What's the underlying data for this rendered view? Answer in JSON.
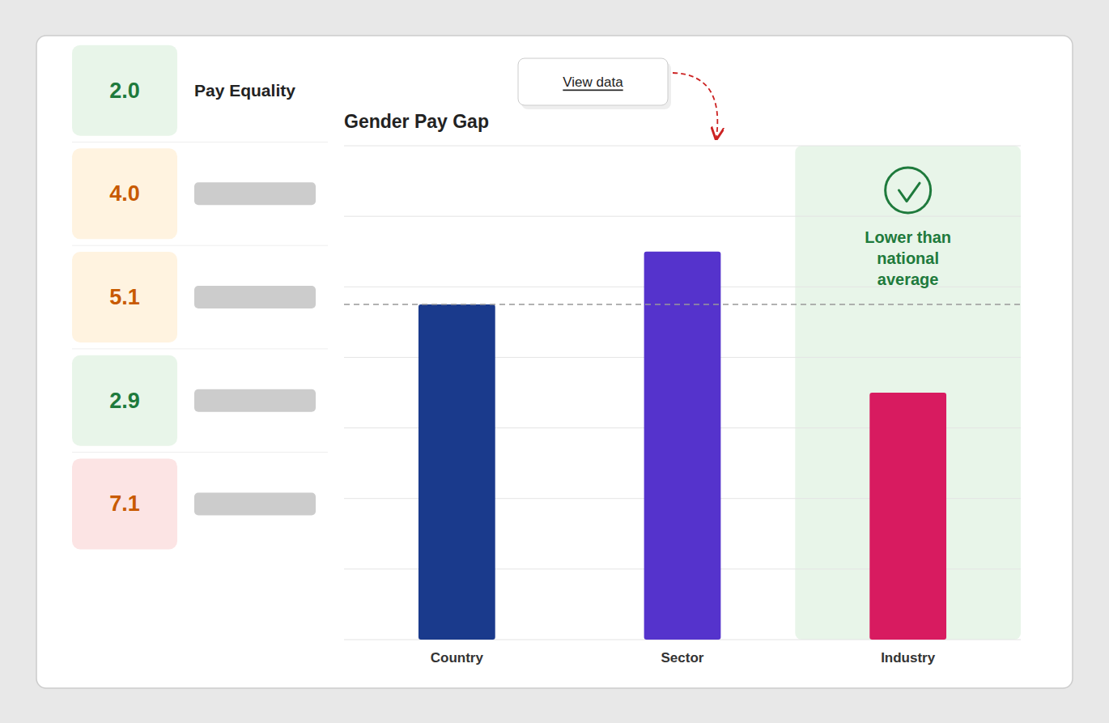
{
  "chart_data": {
    "type": "bar",
    "title": "Gender Pay Gap",
    "categories": [
      "Country",
      "Sector",
      "Industry"
    ],
    "values": [
      9.5,
      11.0,
      7.0
    ],
    "colors": [
      "#1a3a8c",
      "#5533cc",
      "#d81b60"
    ],
    "ylim": [
      0,
      14
    ],
    "yticks": [
      0,
      2,
      4,
      6,
      8,
      10,
      12,
      14
    ],
    "grid": true,
    "tick_labels": "x",
    "reference_line": 9.5,
    "highlight": {
      "category": "Industry",
      "text": "Lower than\nnational\naverage",
      "color": "#1e7a3c",
      "background_color": "#e8f5e9"
    }
  },
  "scorecard": {
    "label": "Pay Equality",
    "values": [
      2.0,
      4.0,
      5.1,
      2.9,
      7.1
    ],
    "value_labels": [
      "2.0",
      "4.0",
      "5.1",
      "2.9",
      "7.1"
    ],
    "colors": [
      "#1e7a3c",
      "#c85a00",
      "#c85a00",
      "#1e7a3c",
      "#c85a00"
    ],
    "background_colors": [
      "#e8f5e9",
      "#fff3e0",
      "#fff3e0",
      "#e8f5e9",
      "#fce4e4"
    ]
  },
  "tooltip": "View data",
  "arrow_color": "#cc2222"
}
